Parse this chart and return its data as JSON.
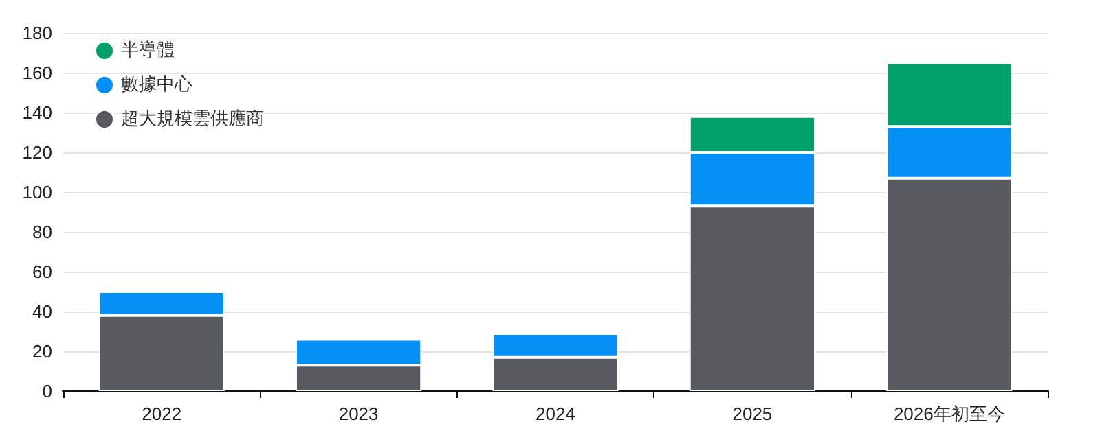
{
  "chart_data": {
    "type": "bar",
    "stacked": true,
    "categories": [
      "2022",
      "2023",
      "2024",
      "2025",
      "2026年初至今"
    ],
    "series": [
      {
        "name": "超大規模雲供應商",
        "color": "#575a5e",
        "values": [
          38,
          13,
          17,
          93,
          107
        ]
      },
      {
        "name": "數據中心",
        "color": "#0590f5",
        "values": [
          12,
          13,
          12,
          27,
          26
        ]
      },
      {
        "name": "半導體",
        "color": "#00a06a",
        "values": [
          null,
          null,
          null,
          18,
          32
        ]
      }
    ],
    "ylim": [
      0,
      180
    ],
    "yticks": [
      0,
      20,
      40,
      60,
      80,
      100,
      120,
      140,
      160,
      180
    ],
    "grid": "y",
    "legend": "top left"
  }
}
